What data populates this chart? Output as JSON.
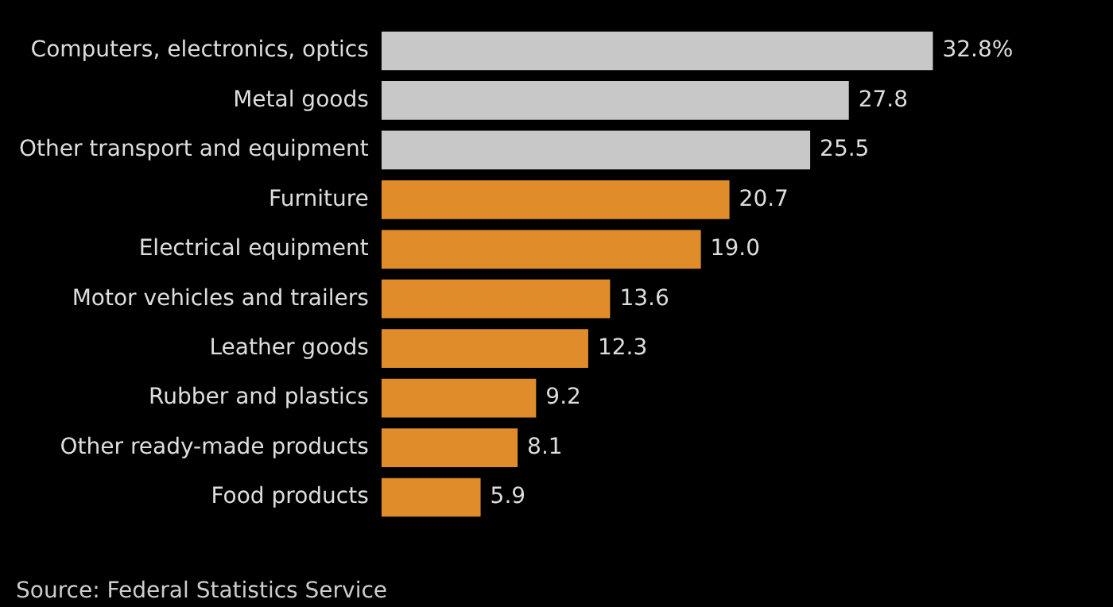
{
  "chart_data": {
    "type": "bar",
    "orientation": "horizontal",
    "categories": [
      "Computers, electronics, optics",
      "Metal goods",
      "Other transport and equipment",
      "Furniture",
      "Electrical equipment",
      "Motor vehicles and trailers",
      "Leather goods",
      "Rubber and plastics",
      "Other ready-made products",
      "Food products"
    ],
    "values": [
      32.8,
      27.8,
      25.5,
      20.7,
      19.0,
      13.6,
      12.3,
      9.2,
      8.1,
      5.9
    ],
    "colors": [
      "#c8c8c8",
      "#c8c8c8",
      "#c8c8c8",
      "#e08c2a",
      "#e08c2a",
      "#e08c2a",
      "#e08c2a",
      "#e08c2a",
      "#e08c2a",
      "#e08c2a"
    ],
    "value_labels": [
      "32.8%",
      "27.8",
      "25.5",
      "20.7",
      "19.0",
      "13.6",
      "12.3",
      "9.2",
      "8.1",
      "5.9"
    ],
    "legend": false,
    "annotations": [
      "Source: Federal Statistics Service"
    ]
  }
}
